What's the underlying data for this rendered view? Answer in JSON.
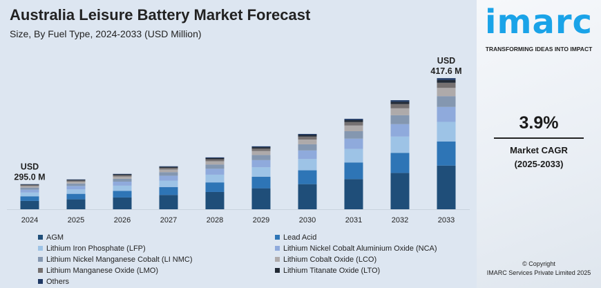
{
  "header": {
    "title": "Australia Leisure Battery Market Forecast",
    "subtitle": "Size, By Fuel Type, 2024-2033 (USD Million)"
  },
  "chart_data": {
    "type": "bar",
    "stacked": true,
    "title": "Australia Leisure Battery Market Forecast",
    "subtitle": "Size, By Fuel Type, 2024-2033 (USD Million)",
    "xlabel": "",
    "ylabel": "",
    "categories": [
      "2024",
      "2025",
      "2026",
      "2027",
      "2028",
      "2029",
      "2030",
      "2031",
      "2032",
      "2033"
    ],
    "totals": [
      295.0,
      300.5,
      306.9,
      315.7,
      326.0,
      338.8,
      353.1,
      370.6,
      392.1,
      417.6
    ],
    "ylim": [
      266,
      420
    ],
    "grid": false,
    "y_axis_visible": false,
    "legend_position": "bottom",
    "annotations": [
      {
        "category": "2024",
        "line1": "USD",
        "line2": "295.0 M"
      },
      {
        "category": "2033",
        "line1": "USD",
        "line2": "417.6 M"
      }
    ],
    "series": [
      {
        "name": "AGM",
        "color": "#1f4e79",
        "share": 0.333
      },
      {
        "name": "Lead Acid",
        "color": "#2e75b6",
        "share": 0.184
      },
      {
        "name": "Lithium Iron Phosphate (LFP)",
        "color": "#9dc3e6",
        "share": 0.149
      },
      {
        "name": "Lithium Nickel Cobalt Aluminium Oxide (NCA)",
        "color": "#8faadc",
        "share": 0.114
      },
      {
        "name": "Lithium Nickel Manganese Cobalt (LI NMC)",
        "color": "#8497b0",
        "share": 0.082
      },
      {
        "name": "Lithium Cobalt Oxide (LCO)",
        "color": "#aeaaaa",
        "share": 0.063
      },
      {
        "name": "Lithium Manganese Oxide (LMO)",
        "color": "#767171",
        "share": 0.039
      },
      {
        "name": "Lithium Titanate Oxide (LTO)",
        "color": "#222a35",
        "share": 0.021
      },
      {
        "name": "Others",
        "color": "#1f3864",
        "share": 0.014
      }
    ]
  },
  "panel": {
    "logo_text": "imarc",
    "tagline": "TRANSFORMING IDEAS INTO IMPACT",
    "cagr_value": "3.9%",
    "cagr_label": "Market CAGR",
    "cagr_period": "(2025-2033)",
    "copyright": "© Copyright",
    "company": "IMARC Services Private Limited 2025",
    "brand_color": "#1aa3e8"
  }
}
